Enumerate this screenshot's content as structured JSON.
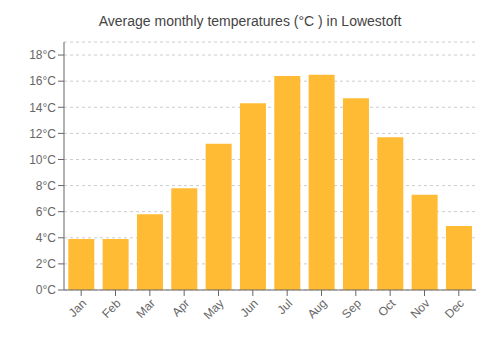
{
  "chart_data": {
    "type": "bar",
    "title": "Average monthly temperatures (°C ) in Lowestoft",
    "categories": [
      "Jan",
      "Feb",
      "Mar",
      "Apr",
      "May",
      "Jun",
      "Jul",
      "Aug",
      "Sep",
      "Oct",
      "Nov",
      "Dec"
    ],
    "values": [
      3.9,
      3.9,
      5.8,
      7.8,
      11.2,
      14.3,
      16.4,
      16.5,
      14.7,
      11.7,
      7.3,
      4.9
    ],
    "color": "#FFBB33",
    "ylim": [
      0,
      19
    ],
    "yticks": [
      {
        "value": 0,
        "label": "0°C"
      },
      {
        "value": 2,
        "label": "2°C"
      },
      {
        "value": 4,
        "label": "4°C"
      },
      {
        "value": 6,
        "label": "6°C"
      },
      {
        "value": 8,
        "label": "8°C"
      },
      {
        "value": 10,
        "label": "10°C"
      },
      {
        "value": 12,
        "label": "12°C"
      },
      {
        "value": 14,
        "label": "14°C"
      },
      {
        "value": 16,
        "label": "16°C"
      },
      {
        "value": 18,
        "label": "18°C"
      }
    ],
    "grid": true
  }
}
